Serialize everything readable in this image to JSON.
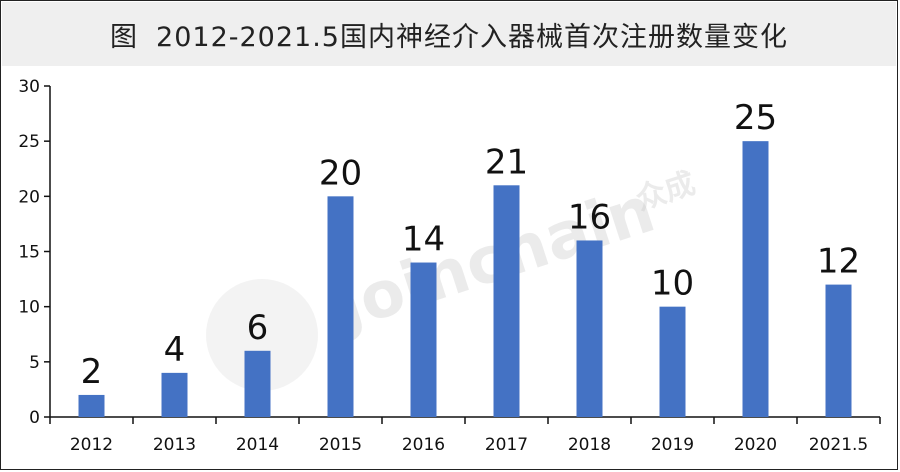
{
  "title": {
    "prefix": "图",
    "text": "2012-2021.5国内神经介入器械首次注册数量变化"
  },
  "watermark": {
    "brand": "Joinchain",
    "cn": "众成"
  },
  "chart_data": {
    "type": "bar",
    "categories": [
      "2012",
      "2013",
      "2014",
      "2015",
      "2016",
      "2017",
      "2018",
      "2019",
      "2020",
      "2021.5"
    ],
    "values": [
      2,
      4,
      6,
      20,
      14,
      21,
      16,
      10,
      25,
      12
    ],
    "ylim": [
      0,
      30
    ],
    "yticks": [
      0,
      5,
      10,
      15,
      20,
      25,
      30
    ],
    "bar_color": "#4472c4",
    "grid": false,
    "legend": "none"
  }
}
